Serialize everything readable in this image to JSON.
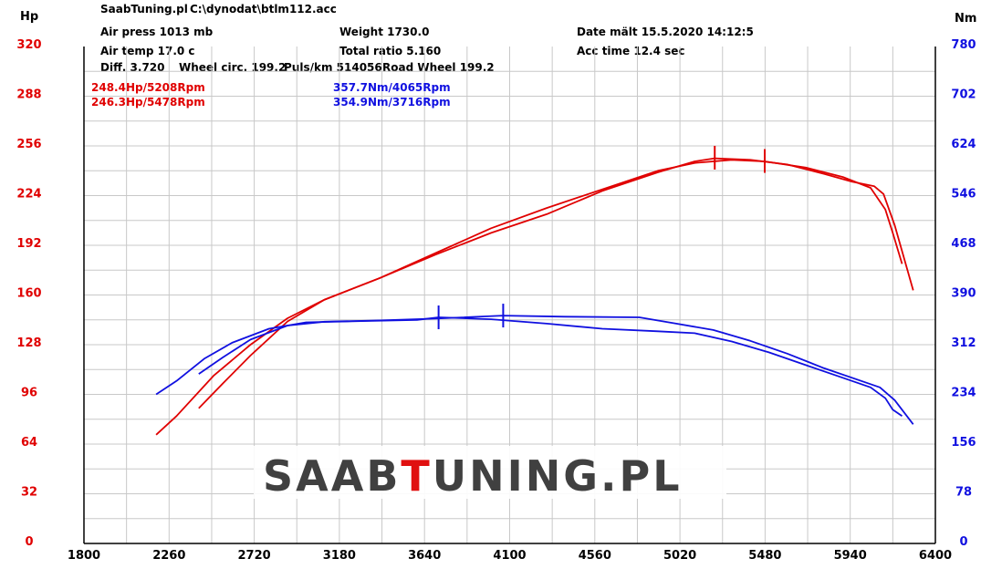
{
  "header": {
    "site": "SaabTuning.pl",
    "file": "C:\\dynodat\\btlm112.acc",
    "air_press": "Air press  1013 mb",
    "air_temp": "Air temp  17.0 c",
    "diff": "Diff.     3.720",
    "wheel_circ": "Wheel circ. 199.2",
    "puls_km": "Puls/km  514056",
    "road_wheel": "Road Wheel 199.2",
    "weight": "Weight   1730.0",
    "total_ratio": "Total ratio 5.160",
    "date": "Date mält 15.5.2020 14:12:5",
    "acc_time": "Acc time   12.4 sec"
  },
  "annotations": {
    "hp1": "248.4Hp/5208Rpm",
    "hp2": "246.3Hp/5478Rpm",
    "nm1": "357.7Nm/4065Rpm",
    "nm2": "354.9Nm/3716Rpm"
  },
  "logo": {
    "part1": "SAAB",
    "part2": "T",
    "part3": "UNING.PL"
  },
  "colors": {
    "power": "#e00000",
    "torque": "#1010e0",
    "grid": "#c8c8c8",
    "logo_red": "#e01010",
    "logo_dark": "#404040"
  },
  "chart_data": {
    "type": "line",
    "title": "",
    "xlabel": "",
    "ylabel_left": "Hp",
    "ylabel_right": "Nm",
    "xlim": [
      1800,
      6400
    ],
    "ylim_left": [
      0,
      320
    ],
    "ylim_right": [
      0,
      780
    ],
    "x_ticks": [
      "1800",
      "2260",
      "2720",
      "3180",
      "3640",
      "4100",
      "4560",
      "5020",
      "5480",
      "5940",
      "6400"
    ],
    "y_left_ticks": [
      "0",
      "32",
      "64",
      "96",
      "128",
      "160",
      "192",
      "224",
      "256",
      "288",
      "320"
    ],
    "y_right_ticks": [
      "0",
      "78",
      "156",
      "234",
      "312",
      "390",
      "468",
      "546",
      "624",
      "702",
      "780"
    ],
    "grid": true,
    "series": [
      {
        "name": "",
        "axis": "left",
        "color": "#e00000",
        "x": [
          2190,
          2300,
          2500,
          2700,
          2900,
          3100,
          3400,
          3700,
          4000,
          4300,
          4600,
          4900,
          5100,
          5300,
          5478,
          5700,
          5900,
          6050,
          6130,
          6170,
          6220
        ],
        "y": [
          70,
          82,
          108,
          128,
          145,
          157,
          171,
          187,
          203,
          216,
          228,
          240,
          245,
          247,
          246,
          242,
          236,
          229,
          215,
          200,
          180
        ]
      },
      {
        "name": "",
        "axis": "left",
        "color": "#e00000",
        "x": [
          2420,
          2550,
          2700,
          2900,
          3100,
          3400,
          3700,
          4000,
          4300,
          4600,
          4900,
          5100,
          5208,
          5400,
          5600,
          5800,
          5950,
          6070,
          6120,
          6180,
          6280
        ],
        "y": [
          87,
          103,
          121,
          143,
          157,
          171,
          186,
          200,
          212,
          227,
          239,
          246,
          248,
          247,
          244,
          238,
          233,
          230,
          225,
          205,
          163
        ]
      },
      {
        "name": "",
        "axis": "right",
        "color": "#1010e0",
        "x": [
          2190,
          2300,
          2450,
          2600,
          2800,
          3000,
          3300,
          3600,
          3716,
          4000,
          4300,
          4600,
          4900,
          5100,
          5300,
          5500,
          5700,
          5900,
          6050,
          6130,
          6170,
          6220
        ],
        "y": [
          234,
          255,
          290,
          315,
          337,
          347,
          349,
          351,
          354.9,
          352,
          345,
          337,
          333,
          330,
          317,
          300,
          280,
          260,
          245,
          228,
          210,
          200
        ]
      },
      {
        "name": "",
        "axis": "right",
        "color": "#1010e0",
        "x": [
          2420,
          2550,
          2700,
          2900,
          3100,
          3400,
          3700,
          4065,
          4400,
          4800,
          5000,
          5200,
          5400,
          5600,
          5800,
          6000,
          6100,
          6180,
          6280
        ],
        "y": [
          266,
          292,
          320,
          342,
          348,
          350,
          353,
          357.7,
          356,
          355,
          345,
          335,
          318,
          298,
          275,
          255,
          245,
          225,
          187
        ]
      }
    ],
    "markers": [
      {
        "axis": "left",
        "x": 5208,
        "y": 248.4
      },
      {
        "axis": "left",
        "x": 5478,
        "y": 246.3
      },
      {
        "axis": "right",
        "x": 3716,
        "y": 354.9
      },
      {
        "axis": "right",
        "x": 4065,
        "y": 357.7
      }
    ]
  }
}
